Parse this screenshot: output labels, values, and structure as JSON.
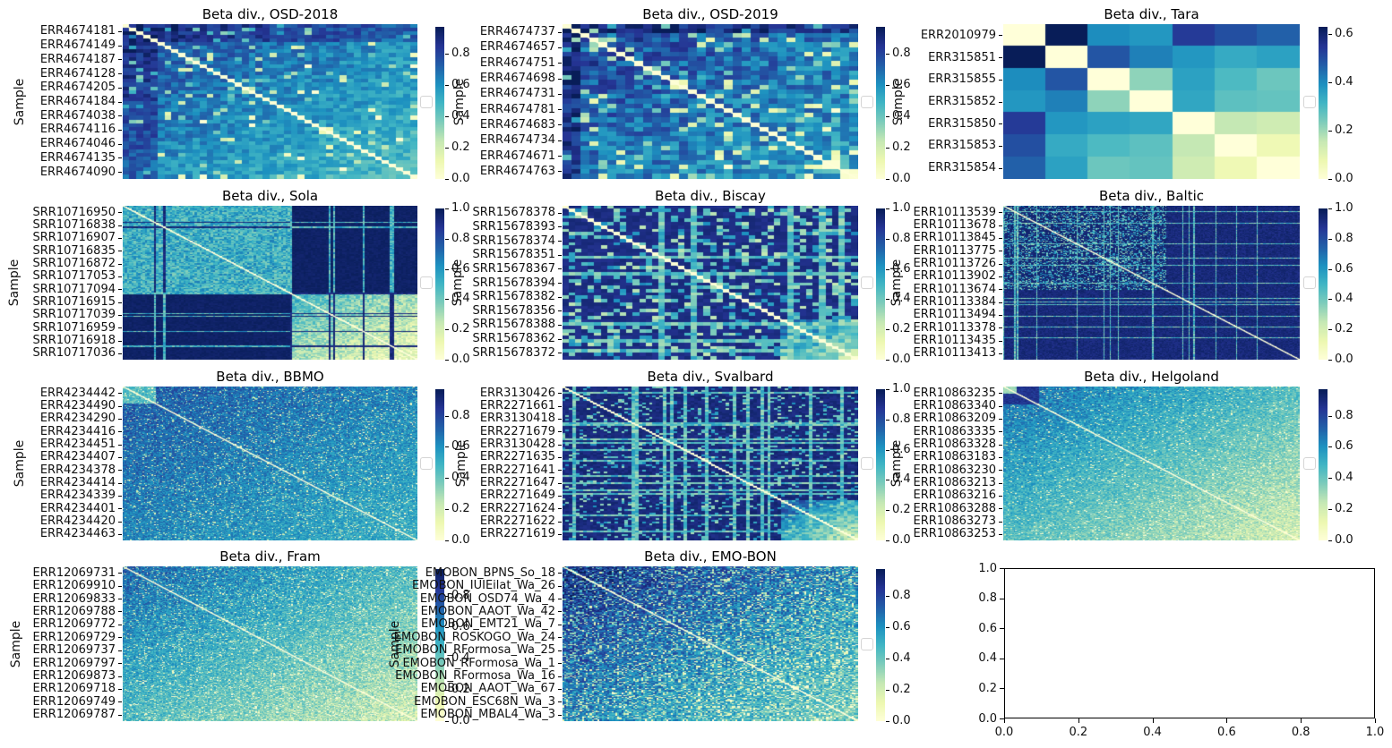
{
  "figure": {
    "background": "#ffffff",
    "colormap": "YlGnBu",
    "colormap_stops": [
      "#ffffd9",
      "#edf8b1",
      "#c7e9b4",
      "#7fcdbb",
      "#41b6c4",
      "#1d91c0",
      "#225ea8",
      "#253494",
      "#081d58"
    ],
    "grid": {
      "rows": 4,
      "cols": 3
    },
    "ylabel": "Sample"
  },
  "chart_data": [
    {
      "type": "heatmap",
      "title": "Beta div., OSD-2018",
      "ylabel": "Sample",
      "yticklabels": [
        "ERR4674181",
        "ERR4674149",
        "ERR4674187",
        "ERR4674128",
        "ERR4674205",
        "ERR4674184",
        "ERR4674038",
        "ERR4674116",
        "ERR4674046",
        "ERR4674135",
        "ERR4674090"
      ],
      "colorbar_ticks": [
        "0.8",
        "0.6",
        "0.4",
        "0.2",
        "0.0"
      ],
      "vmin": 0.0,
      "vmax": 0.97,
      "description": "Symmetric pairwise beta-diversity matrix, ~42 samples; dark blue top-left fading to lighter teal bottom-right; white diagonal (distance 0)",
      "render": {
        "type": "gradient",
        "n": 42,
        "seed": 11,
        "v0": 0.82,
        "v1": 0.45,
        "noise": 0.2,
        "spk": 0.07,
        "edge": 0.1,
        "edgeBoost": 0.12
      }
    },
    {
      "type": "heatmap",
      "title": "Beta div., OSD-2019",
      "ylabel": "Sample",
      "yticklabels": [
        "ERR4674737",
        "ERR4674657",
        "ERR4674751",
        "ERR4674698",
        "ERR4674731",
        "ERR4674781",
        "ERR4674683",
        "ERR4674734",
        "ERR4674671",
        "ERR4674763"
      ],
      "colorbar_ticks": [
        "0.8",
        "0.6",
        "0.4",
        "0.2",
        "0.0"
      ],
      "vmin": 0.0,
      "vmax": 0.97,
      "description": "Symmetric matrix, ~33 samples, mixed mid/dark blues with teal speckles, white diagonal",
      "render": {
        "type": "gradient",
        "n": 33,
        "seed": 22,
        "v0": 0.84,
        "v1": 0.55,
        "noise": 0.28,
        "spk": 0.1,
        "edge": 0.05,
        "edgeBoost": 0.14
      }
    },
    {
      "type": "heatmap",
      "title": "Beta div., Tara",
      "ylabel": "Sample",
      "yticklabels": [
        "ERR2010979",
        "ERR315851",
        "ERR315855",
        "ERR315852",
        "ERR315850",
        "ERR315853",
        "ERR315854"
      ],
      "colorbar_ticks": [
        "0.6",
        "0.4",
        "0.2",
        "0.0"
      ],
      "vmin": 0.0,
      "vmax": 0.63,
      "description": "7x7 symmetric beta-diversity matrix, values estimated from colors",
      "matrix": [
        [
          0.0,
          0.63,
          0.4,
          0.38,
          0.54,
          0.5,
          0.47
        ],
        [
          0.63,
          0.0,
          0.49,
          0.42,
          0.38,
          0.34,
          0.36
        ],
        [
          0.4,
          0.49,
          0.0,
          0.22,
          0.36,
          0.3,
          0.26
        ],
        [
          0.38,
          0.42,
          0.22,
          0.0,
          0.35,
          0.28,
          0.27
        ],
        [
          0.54,
          0.38,
          0.36,
          0.35,
          0.0,
          0.16,
          0.14
        ],
        [
          0.5,
          0.34,
          0.3,
          0.28,
          0.16,
          0.0,
          0.07
        ],
        [
          0.47,
          0.36,
          0.26,
          0.27,
          0.14,
          0.07,
          0.0
        ]
      ],
      "render": {
        "type": "matrix",
        "n": 7
      }
    },
    {
      "type": "heatmap",
      "title": "Beta div., Sola",
      "ylabel": "Sample",
      "yticklabels": [
        "SRR10716950",
        "SRR10716838",
        "SRR10716907",
        "SRR10716835",
        "SRR10716872",
        "SRR10717053",
        "SRR10717094",
        "SRR10716915",
        "SRR10717039",
        "SRR10716959",
        "SRR10716918",
        "SRR10717036"
      ],
      "colorbar_ticks": [
        "1.0",
        "0.8",
        "0.6",
        "0.4",
        "0.2",
        "0.0"
      ],
      "vmin": 0.0,
      "vmax": 1.0,
      "description": "Two-cluster structure (~57%/43%): teal textured block top-left, light yellow-green block bottom-right, near-1.0 navy between clusters, navy stripe rows/cols",
      "render": {
        "type": "clusters",
        "n": 130,
        "seed": 44,
        "split": 0.57,
        "aBase": 0.52,
        "aNoise": 0.32,
        "bStart": 0.5,
        "bEnd": 0.1,
        "bNoise": 0.25,
        "cross": 0.97,
        "stripeP": 0.1
      }
    },
    {
      "type": "heatmap",
      "title": "Beta div., Biscay",
      "ylabel": "Sample",
      "yticklabels": [
        "SRR15678378",
        "SRR15678393",
        "SRR15678374",
        "SRR15678351",
        "SRR15678367",
        "SRR15678394",
        "SRR15678382",
        "SRR15678356",
        "SRR15678388",
        "SRR15678362",
        "SRR15678372"
      ],
      "colorbar_ticks": [
        "1.0",
        "0.8",
        "0.6",
        "0.4",
        "0.2",
        "0.0"
      ],
      "vmin": 0.0,
      "vmax": 1.0,
      "description": "~46 samples; navy background with many light teal cells, lighter yellowish cluster at bottom-right",
      "render": {
        "type": "speckle",
        "n": 46,
        "seed": 55,
        "bg": 0.9,
        "density": 0.3,
        "lo": 0.25,
        "hi": 0.65,
        "stripeP": 0.1,
        "corner": 0.72
      }
    },
    {
      "type": "heatmap",
      "title": "Beta div., Baltic",
      "ylabel": "Sample",
      "yticklabels": [
        "ERR10113539",
        "ERR10113678",
        "ERR10113845",
        "ERR10113775",
        "ERR10113726",
        "ERR10113902",
        "ERR10113674",
        "ERR10113384",
        "ERR10113494",
        "ERR10113378",
        "ERR10113435",
        "ERR10113413"
      ],
      "colorbar_ticks": [
        "1.0",
        "0.8",
        "0.6",
        "0.4",
        "0.2",
        "0.0"
      ],
      "vmin": 0.0,
      "vmax": 1.0,
      "description": "~230 samples; fine navy texture with bright speckles in upper-left block, mostly solid navy lower rows with light stripes",
      "render": {
        "type": "speckle",
        "n": 230,
        "seed": 66,
        "bg": 0.93,
        "density": 0.32,
        "lo": 0.3,
        "hi": 0.7,
        "stripeP": 0.06,
        "speckleRegion": 0.55
      }
    },
    {
      "type": "heatmap",
      "title": "Beta div., BBMO",
      "ylabel": "Sample",
      "yticklabels": [
        "ERR4234442",
        "ERR4234490",
        "ERR4234290",
        "ERR4234416",
        "ERR4234451",
        "ERR4234407",
        "ERR4234378",
        "ERR4234414",
        "ERR4234339",
        "ERR4234401",
        "ERR4234420",
        "ERR4234463"
      ],
      "colorbar_ticks": [
        "0.8",
        "0.6",
        "0.4",
        "0.2",
        "0.0"
      ],
      "vmin": 0.0,
      "vmax": 0.97,
      "description": "~230 samples; fine dark-blue texture, brighter teal block in top-left corner, faint white diagonal",
      "render": {
        "type": "gradient",
        "n": 230,
        "seed": 77,
        "v0": 0.78,
        "v1": 0.52,
        "noise": 0.22,
        "spk": 0.09,
        "topBright": 0.11
      }
    },
    {
      "type": "heatmap",
      "title": "Beta div., Svalbard",
      "ylabel": "Sample",
      "yticklabels": [
        "ERR3130426",
        "ERR2271661",
        "ERR3130418",
        "ERR2271679",
        "ERR3130428",
        "ERR2271635",
        "ERR2271641",
        "ERR2271647",
        "ERR2271649",
        "ERR2271624",
        "ERR2271622",
        "ERR2271619"
      ],
      "colorbar_ticks": [
        "1.0",
        "0.8",
        "0.6",
        "0.4",
        "0.2",
        "0.0"
      ],
      "vmin": 0.0,
      "vmax": 1.0,
      "description": "~85 samples; navy with light horizontal/vertical stripes, bright white diagonal, light teal-yellow cluster bottom-right",
      "render": {
        "type": "speckle",
        "n": 85,
        "seed": 88,
        "bg": 0.92,
        "density": 0.15,
        "lo": 0.3,
        "hi": 0.65,
        "stripeP": 0.2,
        "corner": 0.73
      }
    },
    {
      "type": "heatmap",
      "title": "Beta div., Helgoland",
      "ylabel": "Sample",
      "yticklabels": [
        "ERR10863235",
        "ERR10863340",
        "ERR10863209",
        "ERR10863335",
        "ERR10863328",
        "ERR10863183",
        "ERR10863230",
        "ERR10863213",
        "ERR10863216",
        "ERR10863288",
        "ERR10863273",
        "ERR10863253"
      ],
      "colorbar_ticks": [
        "0.8",
        "0.6",
        "0.4",
        "0.2",
        "0.0"
      ],
      "vmin": 0.0,
      "vmax": 0.97,
      "description": "~190 samples; dark navy band for first ~12% samples with bright speckled corner, remainder grading from mid blue to pale yellow-green bottom-right",
      "render": {
        "type": "gradient",
        "n": 190,
        "seed": 99,
        "v0": 0.72,
        "v1": 0.2,
        "noise": 0.22,
        "spk": 0.05,
        "top": 0.12,
        "topBright2": 0.045
      }
    },
    {
      "type": "heatmap",
      "title": "Beta div., Fram",
      "ylabel": "Sample",
      "yticklabels": [
        "ERR12069731",
        "ERR12069910",
        "ERR12069833",
        "ERR12069788",
        "ERR12069772",
        "ERR12069729",
        "ERR12069737",
        "ERR12069797",
        "ERR12069873",
        "ERR12069718",
        "ERR12069749",
        "ERR12069787"
      ],
      "colorbar_ticks": [
        "0.8",
        "0.6",
        "0.4",
        "0.2",
        "0.0"
      ],
      "vmin": 0.0,
      "vmax": 0.97,
      "description": "~230 samples; fine texture grading from dark blue top-left to pale yellow-green bottom rows, white diagonal",
      "render": {
        "type": "gradient",
        "n": 230,
        "seed": 101,
        "v0": 0.74,
        "v1": 0.22,
        "noise": 0.26,
        "spk": 0.1
      }
    },
    {
      "type": "heatmap",
      "title": "Beta div., EMO-BON",
      "ylabel": "Sample",
      "yticklabels": [
        "EMOBON_BPNS_So_18",
        "EMOBON_IUIEilat_Wa_26",
        "EMOBON_OSD74_Wa_4",
        "EMOBON_AAOT_Wa_42",
        "EMOBON_EMT21_Wa_7",
        "EMOBON_ROSKOGO_Wa_24",
        "EMOBON_RFormosa_Wa_25",
        "EMOBON_RFormosa_Wa_1",
        "EMOBON_RFormosa_Wa_16",
        "EMOBON_AAOT_Wa_67",
        "EMOBON_ESC68N_Wa_3",
        "EMOBON_MBAL4_Wa_3"
      ],
      "colorbar_ticks": [
        "0.8",
        "0.6",
        "0.4",
        "0.2",
        "0.0"
      ],
      "vmin": 0.0,
      "vmax": 0.97,
      "description": "~150 samples; navy dominated with heavy bright speckling, lighter toward bottom-right",
      "render": {
        "type": "gradient",
        "n": 150,
        "seed": 111,
        "v0": 0.92,
        "v1": 0.38,
        "noise": 0.3,
        "spk": 0.22
      }
    },
    {
      "type": "empty-axes",
      "title": "",
      "xticklabels": [
        "0.0",
        "0.2",
        "0.4",
        "0.6",
        "0.8",
        "1.0"
      ],
      "yticklabels": [
        "1.0",
        "0.8",
        "0.6",
        "0.4",
        "0.2",
        "0.0"
      ],
      "xlim": [
        0,
        1
      ],
      "ylim": [
        0,
        1
      ],
      "description": "Unused empty matplotlib axes"
    }
  ]
}
